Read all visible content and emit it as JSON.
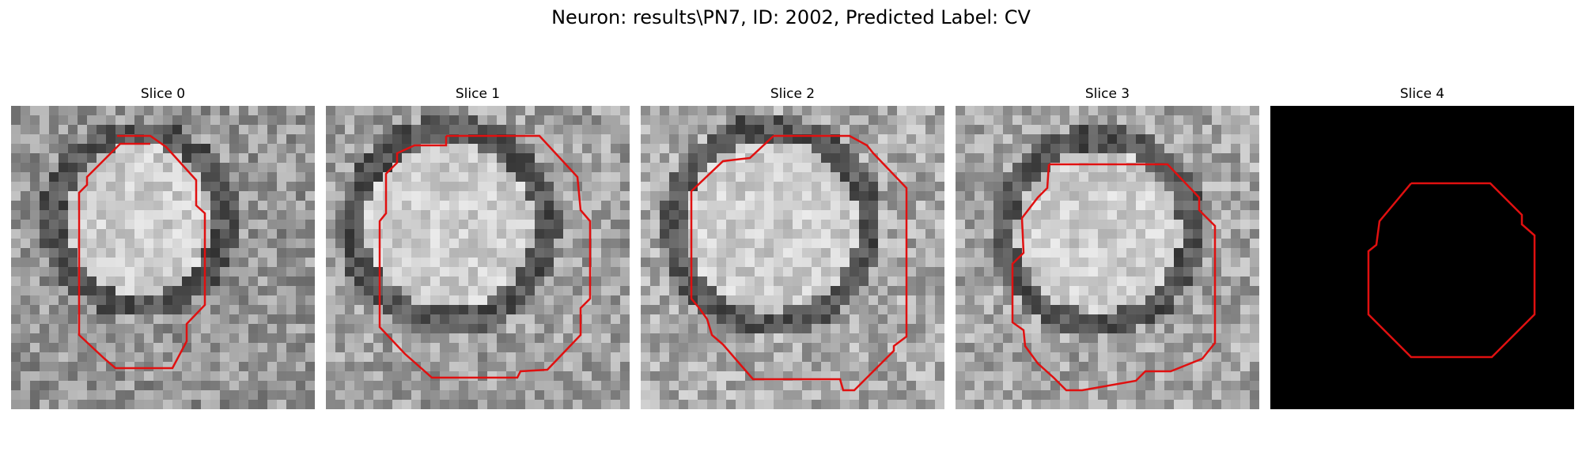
{
  "figure": {
    "title": "Neuron: results\\PN7, ID: 2002, Predicted Label: CV",
    "contour_color": "#e01010",
    "colormap": "gray"
  },
  "panels": [
    {
      "title": "Slice 0",
      "type": "microscopy"
    },
    {
      "title": "Slice 1",
      "type": "microscopy"
    },
    {
      "title": "Slice 2",
      "type": "microscopy"
    },
    {
      "title": "Slice 3",
      "type": "microscopy"
    },
    {
      "title": "Slice 4",
      "type": "mask"
    }
  ]
}
